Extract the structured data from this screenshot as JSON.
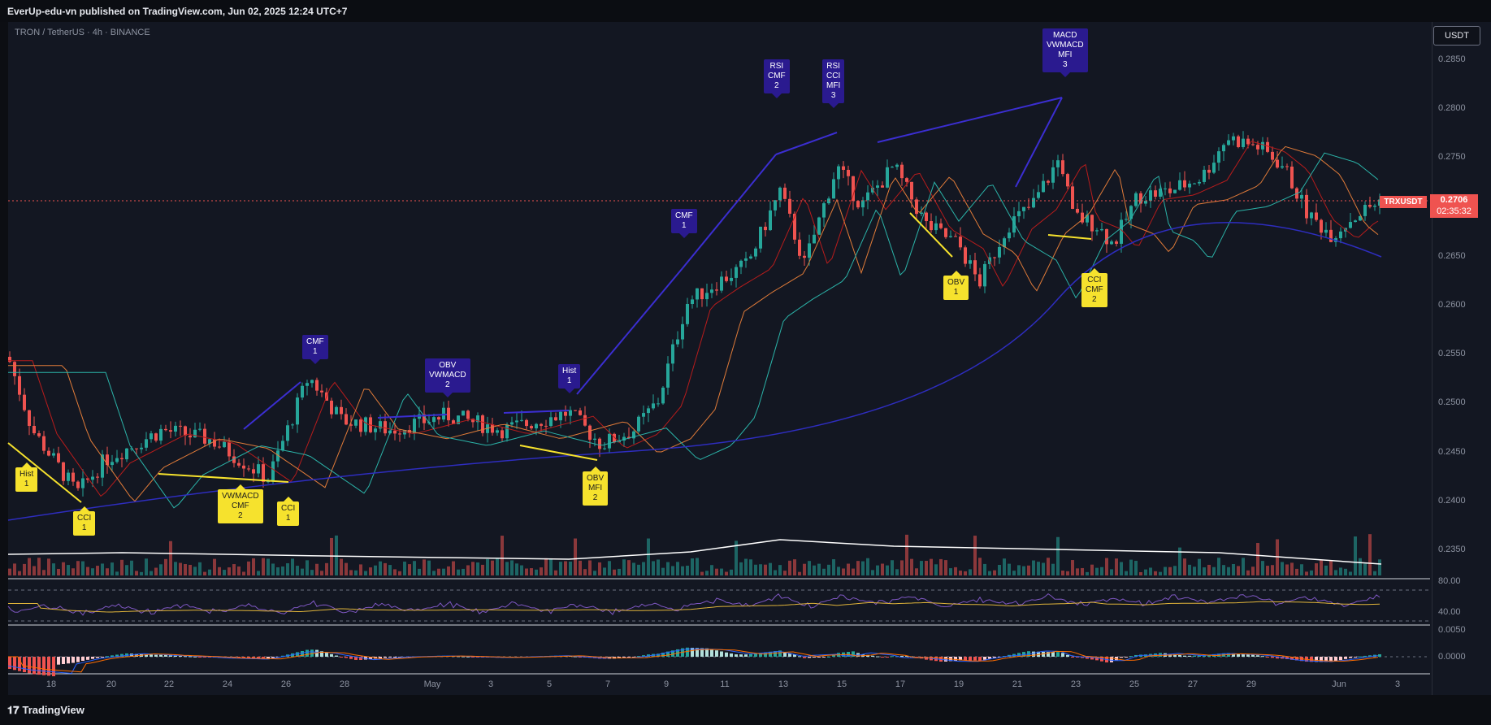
{
  "header": {
    "published_text": "EverUp-edu-vn published on TradingView.com, Jun 02, 2025 12:24 UTC+7"
  },
  "symbol_info": "TRON / TetherUS · 4h · BINANCE",
  "currency_button": "USDT",
  "price_scale": [
    "0.2850",
    "0.2800",
    "0.2750",
    "0.2700",
    "0.2650",
    "0.2600",
    "0.2550",
    "0.2500",
    "0.2450",
    "0.2400",
    "0.2350"
  ],
  "current": {
    "symbol": "TRXUSDT",
    "price": "0.2706",
    "countdown": "02:35:32"
  },
  "oscillator1_scale": [
    "80.00",
    "40.00"
  ],
  "oscillator2_scale": [
    "0.0050",
    "0.0000"
  ],
  "date_axis": [
    "18",
    "20",
    "22",
    "24",
    "26",
    "28",
    "May",
    "3",
    "5",
    "7",
    "9",
    "11",
    "13",
    "15",
    "17",
    "19",
    "21",
    "23",
    "25",
    "27",
    "29",
    "Jun",
    "3"
  ],
  "signals": [
    {
      "type": "bear",
      "lines": [
        "CMF",
        "1"
      ]
    },
    {
      "type": "bear",
      "lines": [
        "OBV",
        "VWMACD",
        "2"
      ]
    },
    {
      "type": "bear",
      "lines": [
        "Hist",
        "1"
      ]
    },
    {
      "type": "bear",
      "lines": [
        "CMF",
        "1"
      ]
    },
    {
      "type": "bear",
      "lines": [
        "RSI",
        "CMF",
        "2"
      ]
    },
    {
      "type": "bear",
      "lines": [
        "RSI",
        "CCI",
        "MFI",
        "3"
      ]
    },
    {
      "type": "bear",
      "lines": [
        "MACD",
        "VWMACD",
        "MFI",
        "3"
      ]
    },
    {
      "type": "bull",
      "lines": [
        "Hist",
        "1"
      ]
    },
    {
      "type": "bull",
      "lines": [
        "CCI",
        "1"
      ]
    },
    {
      "type": "bull",
      "lines": [
        "VWMACD",
        "CMF",
        "2"
      ]
    },
    {
      "type": "bull",
      "lines": [
        "CCI",
        "1"
      ]
    },
    {
      "type": "bull",
      "lines": [
        "OBV",
        "MFI",
        "2"
      ]
    },
    {
      "type": "bull",
      "lines": [
        "OBV",
        "1"
      ]
    },
    {
      "type": "bull",
      "lines": [
        "CCI",
        "CMF",
        "2"
      ]
    }
  ],
  "colors": {
    "bull": "#26a69a",
    "bear": "#ef5350",
    "bg": "#131722",
    "bear_label": "#2a1a8f",
    "bull_label": "#f6e22d"
  },
  "brand": "TradingView"
}
